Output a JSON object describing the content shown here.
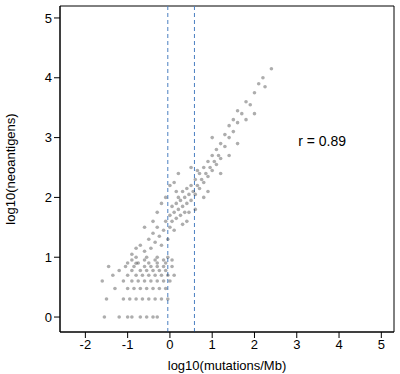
{
  "chart_data": {
    "type": "scatter",
    "x_label": "log10(mutations/Mb)",
    "y_label": "log10(neoantigens)",
    "color": "#333333",
    "marker": "circle",
    "xlim": [
      -2.6,
      5.3
    ],
    "xticks": [
      -2,
      -1,
      0,
      1,
      2,
      3,
      4,
      5
    ],
    "ylim": [
      -0.25,
      5.2
    ],
    "yticks": [
      0,
      1,
      2,
      3,
      4,
      5
    ],
    "vlines": [
      -0.05,
      0.58
    ],
    "annotations": [
      {
        "text": "r = 0.89",
        "x": 3.6,
        "y": 2.95
      }
    ],
    "x": [
      -1.55,
      -1.2,
      -1.0,
      -0.9,
      -0.7,
      -0.55,
      -0.4,
      -0.3,
      -1.5,
      -1.1,
      -0.95,
      -0.8,
      -0.65,
      -0.5,
      -0.35,
      -0.2,
      -0.05,
      -1.3,
      -1.0,
      -0.85,
      -0.7,
      -0.55,
      -0.4,
      -0.25,
      -0.1,
      -1.6,
      -1.1,
      -0.9,
      -0.75,
      -0.6,
      -0.45,
      -0.3,
      -0.15,
      0,
      -1.35,
      -1.0,
      -0.8,
      -0.65,
      -0.5,
      -0.35,
      -0.2,
      -0.05,
      0.1,
      -1.2,
      -0.9,
      -0.7,
      -0.55,
      -0.4,
      -0.25,
      -0.1,
      -1.45,
      -1.05,
      -0.85,
      -0.6,
      -0.45,
      -0.3,
      -0.15,
      0.05,
      -1.0,
      -0.75,
      -0.5,
      -0.3,
      -0.1,
      -0.9,
      -0.6,
      -0.35,
      -0.15,
      0.05,
      -0.8,
      -0.55,
      -0.3,
      -0.05,
      -0.9,
      -0.8,
      -0.7,
      -0.6,
      -0.5,
      -0.45,
      -0.4,
      -0.35,
      -0.3,
      -0.25,
      -0.2,
      -0.15,
      -0.1,
      -0.05,
      0,
      0,
      0.05,
      0.05,
      0.1,
      0.1,
      0.15,
      0.15,
      0.2,
      0.2,
      0.25,
      0.25,
      0.3,
      0.3,
      0.35,
      0.35,
      0.4,
      0.4,
      0.45,
      0.5,
      0.5,
      0.55,
      0.6,
      0.6,
      0.65,
      0.7,
      0.7,
      0.75,
      0.8,
      0.8,
      0.85,
      0.9,
      0.9,
      0.95,
      1.0,
      1.0,
      1.05,
      1.1,
      1.1,
      1.15,
      1.2,
      1.2,
      1.3,
      1.3,
      1.4,
      1.4,
      1.5,
      1.5,
      1.6,
      1.6,
      1.7,
      1.8,
      1.9,
      2.0,
      2.1,
      2.2,
      2.25,
      2.4,
      -0.1,
      0.0,
      0.2,
      -0.3,
      0.4,
      0.6,
      -0.6,
      -0.8,
      1.2,
      1.6,
      -0.2,
      0.1,
      0.3,
      0.5,
      0.8,
      1.0,
      1.4,
      1.8,
      2.0,
      -0.4,
      0.15,
      0.45,
      0.65,
      0.9
    ],
    "values": [
      0,
      0,
      0,
      0,
      0,
      0,
      0,
      0,
      0.301,
      0.301,
      0.301,
      0.301,
      0.301,
      0.301,
      0.301,
      0.301,
      0.301,
      0.477,
      0.477,
      0.477,
      0.477,
      0.477,
      0.477,
      0.477,
      0.477,
      0.602,
      0.602,
      0.602,
      0.602,
      0.602,
      0.602,
      0.602,
      0.602,
      0.602,
      0.699,
      0.699,
      0.699,
      0.699,
      0.699,
      0.699,
      0.699,
      0.699,
      0.699,
      0.778,
      0.778,
      0.778,
      0.778,
      0.778,
      0.778,
      0.778,
      0.845,
      0.845,
      0.845,
      0.845,
      0.845,
      0.845,
      0.845,
      0.845,
      0.903,
      0.903,
      0.903,
      0.903,
      0.903,
      0.954,
      0.954,
      0.954,
      0.954,
      0.954,
      1.0,
      1.0,
      1.0,
      1.0,
      1.05,
      1.15,
      1.2,
      1.1,
      1.3,
      1.15,
      1.4,
      1.25,
      1.5,
      1.35,
      1.2,
      1.45,
      1.6,
      1.3,
      1.7,
      1.5,
      1.85,
      1.6,
      1.75,
      1.45,
      1.9,
      1.65,
      1.8,
      2.0,
      1.7,
      1.95,
      1.85,
      2.1,
      1.75,
      2.0,
      2.15,
      1.9,
      2.05,
      2.2,
      1.95,
      2.1,
      2.3,
      2.05,
      2.2,
      2.4,
      2.15,
      2.3,
      2.5,
      2.25,
      2.4,
      2.6,
      2.35,
      2.5,
      2.7,
      2.45,
      2.6,
      2.8,
      2.55,
      2.7,
      2.9,
      2.65,
      2.85,
      3.05,
      3.0,
      3.2,
      3.1,
      3.3,
      3.25,
      3.45,
      3.4,
      3.6,
      3.55,
      3.75,
      3.9,
      4.0,
      3.85,
      4.15,
      2.0,
      2.2,
      2.4,
      1.75,
      1.6,
      1.8,
      1.5,
      0.9,
      2.4,
      2.9,
      1.9,
      2.25,
      1.55,
      2.5,
      2.0,
      3.0,
      2.7,
      3.3,
      3.4,
      1.6,
      2.1,
      1.75,
      2.45,
      2.1
    ]
  }
}
